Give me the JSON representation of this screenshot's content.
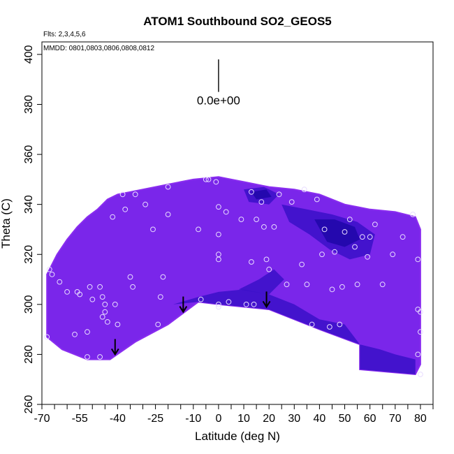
{
  "chart_data": {
    "type": "heatmap",
    "title": "ATOM1 Southbound SO2_GEOS5",
    "annotations": {
      "flights": "Flts: 2,3,4,5,6",
      "dates": "MMDD: 0801,0803,0806,0808,0812",
      "scale_label": "0.0e+00"
    },
    "xlabel": "Latitude (deg N)",
    "ylabel": "Theta (C)",
    "xlim": [
      -70,
      85
    ],
    "ylim": [
      260,
      405
    ],
    "x_ticks": [
      -70,
      -55,
      -40,
      -25,
      -10,
      0,
      10,
      20,
      30,
      40,
      50,
      60,
      70,
      80
    ],
    "x_minor_ticks": [
      -65,
      -60,
      -50,
      -45,
      -35,
      -30,
      -20,
      -15,
      -5,
      5,
      15,
      25,
      35,
      45,
      55,
      65,
      75,
      85
    ],
    "y_ticks": [
      260,
      280,
      300,
      320,
      340,
      360,
      380,
      400
    ],
    "colors": {
      "base": "#7a26ea",
      "light": "#8a2df0",
      "dark": "#3a10c8",
      "darkest": "#1e07a8",
      "point_ring": "#e8dcff",
      "axis": "#000000"
    },
    "field_outline": [
      [
        -68,
        287
      ],
      [
        -68,
        312
      ],
      [
        -64,
        320
      ],
      [
        -60,
        326
      ],
      [
        -56,
        331
      ],
      [
        -52,
        335
      ],
      [
        -48,
        338
      ],
      [
        -44,
        342
      ],
      [
        -40,
        344
      ],
      [
        -35,
        345
      ],
      [
        -25,
        347
      ],
      [
        -15,
        349
      ],
      [
        -10,
        350
      ],
      [
        0,
        351
      ],
      [
        10,
        349
      ],
      [
        20,
        347
      ],
      [
        30,
        346
      ],
      [
        40,
        344
      ],
      [
        50,
        340
      ],
      [
        60,
        338
      ],
      [
        70,
        337
      ],
      [
        78,
        335
      ],
      [
        80,
        330
      ],
      [
        80,
        276
      ],
      [
        78,
        272
      ],
      [
        56,
        274
      ],
      [
        56,
        284
      ],
      [
        40,
        290
      ],
      [
        20,
        298
      ],
      [
        0,
        300
      ],
      [
        -8,
        301
      ],
      [
        -20,
        292
      ],
      [
        -33,
        285
      ],
      [
        -43,
        278
      ],
      [
        -52,
        278
      ],
      [
        -62,
        282
      ],
      [
        -68,
        287
      ]
    ],
    "dark_regions": [
      {
        "level": "dark",
        "points": [
          [
            -18,
            300
          ],
          [
            -8,
            303
          ],
          [
            0,
            305
          ],
          [
            10,
            306
          ],
          [
            20,
            304
          ],
          [
            30,
            300
          ],
          [
            40,
            294
          ],
          [
            50,
            292
          ],
          [
            56,
            284
          ],
          [
            40,
            290
          ],
          [
            20,
            298
          ],
          [
            0,
            300
          ],
          [
            -8,
            301
          ]
        ]
      },
      {
        "level": "dark",
        "points": [
          [
            25,
            340
          ],
          [
            35,
            338
          ],
          [
            45,
            336
          ],
          [
            55,
            333
          ],
          [
            62,
            328
          ],
          [
            60,
            320
          ],
          [
            52,
            318
          ],
          [
            44,
            322
          ],
          [
            36,
            328
          ],
          [
            28,
            333
          ]
        ]
      },
      {
        "level": "darkest",
        "points": [
          [
            38,
            334
          ],
          [
            46,
            334
          ],
          [
            54,
            331
          ],
          [
            56,
            326
          ],
          [
            50,
            323
          ],
          [
            43,
            325
          ]
        ]
      },
      {
        "level": "dark",
        "points": [
          [
            10,
            346
          ],
          [
            18,
            347
          ],
          [
            24,
            344
          ],
          [
            20,
            340
          ],
          [
            12,
            341
          ]
        ]
      },
      {
        "level": "darkest",
        "points": [
          [
            13,
            345
          ],
          [
            19,
            346
          ],
          [
            21,
            343
          ],
          [
            15,
            342
          ]
        ]
      },
      {
        "level": "dark",
        "points": [
          [
            56,
            284
          ],
          [
            64,
            282
          ],
          [
            70,
            280
          ],
          [
            78,
            278
          ],
          [
            78,
            272
          ],
          [
            56,
            274
          ]
        ]
      },
      {
        "level": "dark",
        "points": [
          [
            8,
            306
          ],
          [
            16,
            310
          ],
          [
            22,
            314
          ],
          [
            26,
            310
          ],
          [
            20,
            304
          ]
        ]
      }
    ],
    "observations": [
      [
        -68,
        287
      ],
      [
        -67,
        314
      ],
      [
        -66,
        312
      ],
      [
        -63,
        309
      ],
      [
        -60,
        305
      ],
      [
        -57,
        288
      ],
      [
        -56,
        305
      ],
      [
        -55,
        304
      ],
      [
        -52,
        289
      ],
      [
        -52,
        279
      ],
      [
        -51,
        307
      ],
      [
        -50,
        302
      ],
      [
        -47,
        307
      ],
      [
        -47,
        279
      ],
      [
        -46,
        303
      ],
      [
        -46,
        295
      ],
      [
        -45,
        300
      ],
      [
        -45,
        297
      ],
      [
        -44,
        293
      ],
      [
        -42,
        335
      ],
      [
        -41,
        300
      ],
      [
        -40,
        292
      ],
      [
        -38,
        344
      ],
      [
        -37,
        338
      ],
      [
        -35,
        311
      ],
      [
        -34,
        307
      ],
      [
        -33,
        344
      ],
      [
        -29,
        340
      ],
      [
        -26,
        330
      ],
      [
        -24,
        292
      ],
      [
        -23,
        303
      ],
      [
        -22,
        311
      ],
      [
        -20,
        336
      ],
      [
        -20,
        347
      ],
      [
        -8,
        330
      ],
      [
        -7,
        302
      ],
      [
        -5,
        350
      ],
      [
        -4,
        350
      ],
      [
        -1,
        349
      ],
      [
        0,
        328
      ],
      [
        0,
        320
      ],
      [
        0,
        318
      ],
      [
        0,
        339
      ],
      [
        0,
        300
      ],
      [
        0,
        299
      ],
      [
        3,
        337
      ],
      [
        4,
        301
      ],
      [
        9,
        334
      ],
      [
        11,
        300
      ],
      [
        13,
        317
      ],
      [
        13,
        345
      ],
      [
        14,
        300
      ],
      [
        15,
        334
      ],
      [
        17,
        341
      ],
      [
        18,
        331
      ],
      [
        19,
        318
      ],
      [
        20,
        314
      ],
      [
        22,
        331
      ],
      [
        24,
        344
      ],
      [
        27,
        308
      ],
      [
        29,
        341
      ],
      [
        33,
        316
      ],
      [
        34,
        346
      ],
      [
        35,
        308
      ],
      [
        37,
        292
      ],
      [
        39,
        342
      ],
      [
        41,
        320
      ],
      [
        42,
        330
      ],
      [
        44,
        291
      ],
      [
        45,
        306
      ],
      [
        46,
        321
      ],
      [
        48,
        292
      ],
      [
        49,
        307
      ],
      [
        50,
        329
      ],
      [
        52,
        334
      ],
      [
        54,
        323
      ],
      [
        55,
        308
      ],
      [
        57,
        327
      ],
      [
        59,
        319
      ],
      [
        60,
        327
      ],
      [
        62,
        332
      ],
      [
        65,
        308
      ],
      [
        69,
        320
      ],
      [
        73,
        327
      ],
      [
        77,
        336
      ],
      [
        79,
        318
      ],
      [
        79,
        298
      ],
      [
        79,
        280
      ],
      [
        80,
        289
      ],
      [
        80,
        297
      ],
      [
        80,
        272
      ]
    ],
    "arrows": [
      [
        -41,
        280
      ],
      [
        -14,
        297
      ],
      [
        19,
        299
      ]
    ],
    "scale_bar": {
      "x": 0,
      "y_top": 398,
      "y_bottom": 385
    }
  }
}
